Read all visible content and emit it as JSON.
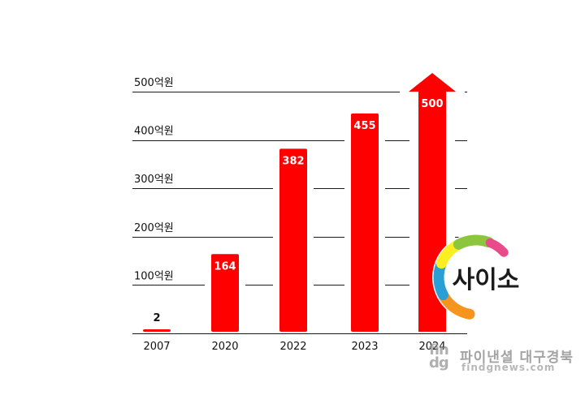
{
  "chart_data": {
    "type": "bar",
    "categories": [
      "2007",
      "2020",
      "2022",
      "2023",
      "2024"
    ],
    "values": [
      2,
      164,
      382,
      455,
      500
    ],
    "value_labels": [
      "2",
      "164",
      "382",
      "455",
      "500"
    ],
    "y_ticks": [
      {
        "value": 100,
        "label": "100억원"
      },
      {
        "value": 200,
        "label": "200억원"
      },
      {
        "value": 300,
        "label": "300억원"
      },
      {
        "value": 400,
        "label": "400억원"
      },
      {
        "value": 500,
        "label": "500억원"
      }
    ],
    "ylim": [
      0,
      500
    ],
    "grid": true,
    "last_bar_style": "arrow",
    "bar_color": "#ff0000"
  },
  "logo": {
    "text": "사이소",
    "colors": [
      "#2a9fd6",
      "#8cc63f",
      "#f7941d",
      "#e84a8a",
      "#fcee21"
    ]
  },
  "watermark": {
    "brand": "fin\ndg",
    "name": "파이낸셜 대구경북",
    "url": "findgnews.com"
  }
}
